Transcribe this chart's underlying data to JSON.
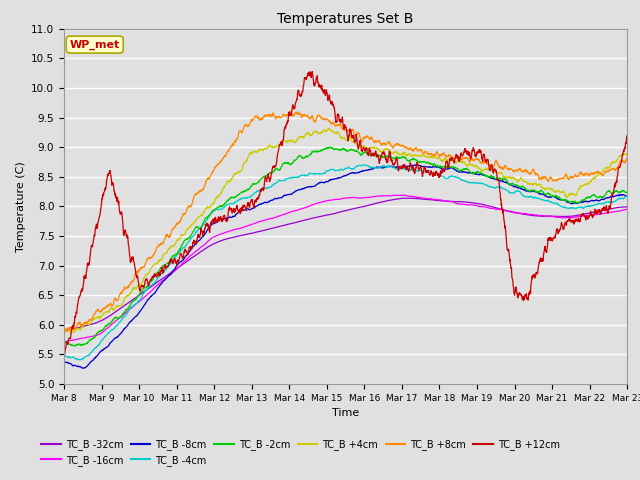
{
  "title": "Temperatures Set B",
  "xlabel": "Time",
  "ylabel": "Temperature (C)",
  "ylim": [
    5.0,
    11.0
  ],
  "xlim": [
    0,
    15
  ],
  "yticks": [
    5.0,
    5.5,
    6.0,
    6.5,
    7.0,
    7.5,
    8.0,
    8.5,
    9.0,
    9.5,
    10.0,
    10.5,
    11.0
  ],
  "xtick_labels": [
    "Mar 8",
    "Mar 9",
    "Mar 10",
    "Mar 11",
    "Mar 12",
    "Mar 13",
    "Mar 14",
    "Mar 15",
    "Mar 16",
    "Mar 17",
    "Mar 18",
    "Mar 19",
    "Mar 20",
    "Mar 21",
    "Mar 22",
    "Mar 23"
  ],
  "series": [
    {
      "label": "TC_B -32cm",
      "color": "#9900cc"
    },
    {
      "label": "TC_B -16cm",
      "color": "#ff00ff"
    },
    {
      "label": "TC_B -8cm",
      "color": "#0000cc"
    },
    {
      "label": "TC_B -4cm",
      "color": "#00cccc"
    },
    {
      "label": "TC_B -2cm",
      "color": "#00cc00"
    },
    {
      "label": "TC_B +4cm",
      "color": "#cccc00"
    },
    {
      "label": "TC_B +8cm",
      "color": "#ff8800"
    },
    {
      "label": "TC_B +12cm",
      "color": "#cc0000"
    }
  ],
  "wp_met_box_color": "#ffffcc",
  "wp_met_border_color": "#aaa800",
  "wp_met_text_color": "#cc0000",
  "plot_bg_color": "#e0e0e0",
  "grid_color": "#ffffff",
  "legend_ncol": 6,
  "legend_ncol2": 2
}
